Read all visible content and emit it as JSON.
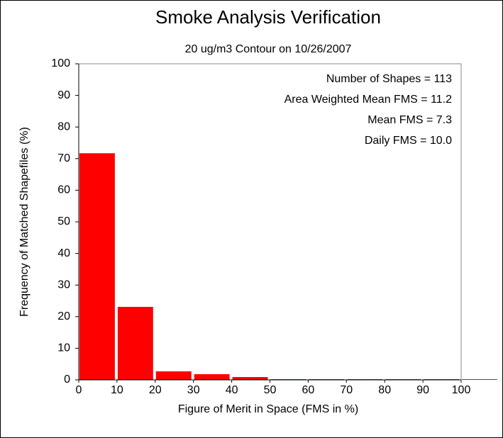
{
  "chart_data": {
    "type": "histogram",
    "title": "Smoke Analysis Verification",
    "subtitle": "20 ug/m3 Contour on 10/26/2007",
    "xlabel": "Figure of Merit in Space (FMS in %)",
    "ylabel": "Frequency of Matched Shapefiles (%)",
    "annotations": [
      "Number of Shapes = 113",
      "Area Weighted Mean FMS = 11.2",
      "Mean FMS = 7.3",
      "Daily FMS = 10.0"
    ],
    "bins": [
      0,
      10,
      20,
      30,
      40,
      50,
      60,
      70,
      80,
      90,
      100,
      110
    ],
    "values": [
      71.7,
      23.1,
      2.7,
      1.8,
      0.9,
      0,
      0,
      0,
      0,
      0,
      0
    ],
    "color": "#ff0000",
    "xlim": [
      0,
      100
    ],
    "ylim": [
      0,
      100
    ],
    "xticks": [
      0,
      10,
      20,
      30,
      40,
      50,
      60,
      70,
      80,
      90,
      100
    ],
    "yticks": [
      0,
      10,
      20,
      30,
      40,
      50,
      60,
      70,
      80,
      90,
      100
    ]
  }
}
